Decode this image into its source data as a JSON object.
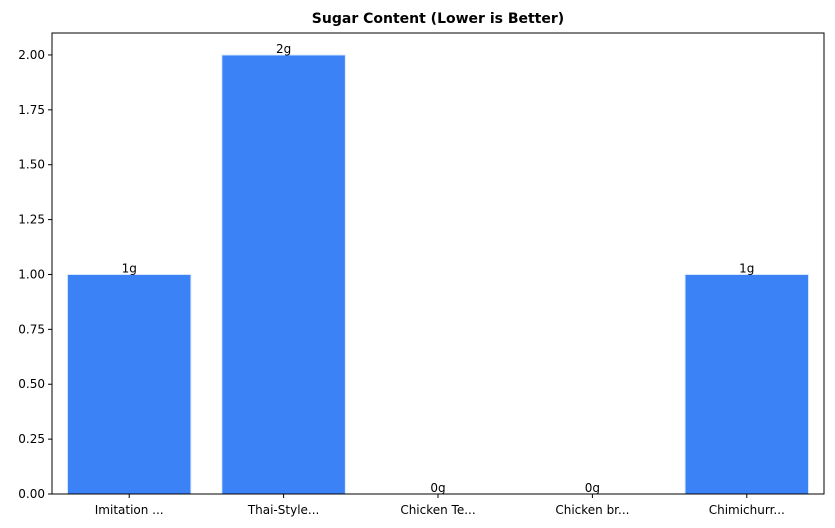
{
  "chart_data": {
    "type": "bar",
    "title": "Sugar Content (Lower is Better)",
    "xlabel": "",
    "ylabel": "",
    "categories": [
      "Imitation ...",
      "Thai-Style...",
      "Chicken Te...",
      "Chicken br...",
      "Chimichurr..."
    ],
    "values": [
      1,
      2,
      0,
      0,
      1
    ],
    "data_labels": [
      "1g",
      "2g",
      "0g",
      "0g",
      "1g"
    ],
    "ylim": [
      0,
      2.1
    ],
    "yticks": [
      0,
      0.25,
      0.5,
      0.75,
      1.0,
      1.25,
      1.5,
      1.75,
      2.0
    ],
    "ytick_labels": [
      "0.00",
      "0.25",
      "0.50",
      "0.75",
      "1.00",
      "1.25",
      "1.50",
      "1.75",
      "2.00"
    ],
    "bar_color": "#3b82f6",
    "bar_edge_color": "#dbeafe",
    "grid": false,
    "legend": "none"
  }
}
